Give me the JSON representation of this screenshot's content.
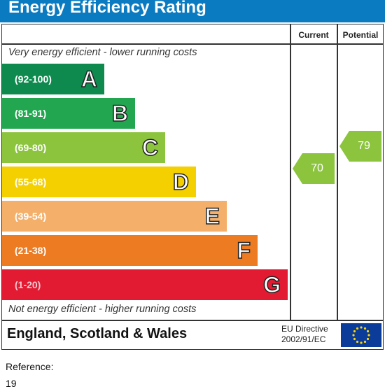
{
  "title": "Energy Efficiency Rating",
  "columns": {
    "current": "Current",
    "potential": "Potential"
  },
  "top_note": "Very energy efficient - lower running costs",
  "bottom_note": "Not energy efficient - higher running costs",
  "country": "England, Scotland & Wales",
  "directive": {
    "line1": "EU Directive",
    "line2": "2002/91/EC"
  },
  "flag_icon": "eu-flag-icon",
  "reference": {
    "label": "Reference:",
    "value": "19"
  },
  "chart_data": {
    "type": "bar",
    "title": "Energy Efficiency Rating",
    "categories": [
      "A",
      "B",
      "C",
      "D",
      "E",
      "F",
      "G"
    ],
    "ranges": [
      "(92-100)",
      "(81-91)",
      "(69-80)",
      "(55-68)",
      "(39-54)",
      "(21-38)",
      "(1-20)"
    ],
    "colors": [
      "#0e8a4f",
      "#22a750",
      "#8cc43e",
      "#f4d000",
      "#f4b06a",
      "#ec7b22",
      "#e21b33"
    ],
    "current": {
      "value": 70,
      "band": "C",
      "color": "#8cc43e"
    },
    "potential": {
      "value": 79,
      "band": "C",
      "color": "#8cc43e"
    }
  }
}
